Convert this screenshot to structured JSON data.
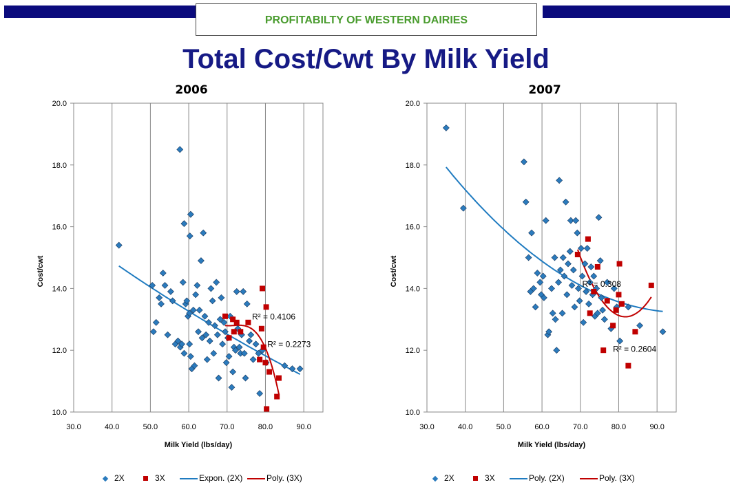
{
  "header": {
    "banner_text": "PROFITABILTY OF WESTERN DAIRIES",
    "title": "Total Cost/Cwt By Milk Yield",
    "banner_color": "#0b0b7d",
    "title_color": "#161a85",
    "banner_text_color": "#4a9c2f"
  },
  "chart_data": [
    {
      "type": "scatter",
      "title": "2006",
      "xlabel": "Milk Yield (lbs/day)",
      "ylabel": "Cost/cwt",
      "xlim": [
        30,
        95
      ],
      "ylim": [
        10,
        20
      ],
      "xticks": [
        "30.0",
        "40.0",
        "50.0",
        "60.0",
        "70.0",
        "80.0",
        "90.0"
      ],
      "yticks": [
        "10.0",
        "12.0",
        "14.0",
        "16.0",
        "18.0",
        "20.0"
      ],
      "grid": "vertical",
      "legend": "bottom",
      "series": [
        {
          "name": "2X",
          "marker": "diamond",
          "color": "#2b7bbd",
          "points": [
            [
              41.8,
              15.4
            ],
            [
              50.5,
              14.1
            ],
            [
              50.8,
              12.6
            ],
            [
              51.5,
              12.9
            ],
            [
              52.3,
              13.7
            ],
            [
              52.8,
              13.5
            ],
            [
              53.3,
              14.5
            ],
            [
              53.8,
              14.1
            ],
            [
              54.5,
              12.5
            ],
            [
              55.3,
              13.9
            ],
            [
              55.8,
              13.6
            ],
            [
              56.5,
              12.2
            ],
            [
              57.2,
              12.3
            ],
            [
              57.7,
              18.5
            ],
            [
              57.8,
              12.1
            ],
            [
              58.2,
              12.2
            ],
            [
              58.5,
              14.2
            ],
            [
              58.8,
              16.1
            ],
            [
              58.8,
              11.9
            ],
            [
              59.2,
              13.5
            ],
            [
              59.5,
              13.6
            ],
            [
              59.8,
              13.1
            ],
            [
              60.2,
              13.2
            ],
            [
              60.2,
              12.2
            ],
            [
              60.3,
              15.7
            ],
            [
              60.5,
              16.4
            ],
            [
              60.5,
              11.8
            ],
            [
              60.8,
              11.4
            ],
            [
              61.2,
              13.3
            ],
            [
              61.5,
              11.5
            ],
            [
              61.8,
              13.8
            ],
            [
              62.2,
              14.1
            ],
            [
              62.5,
              12.6
            ],
            [
              62.8,
              13.3
            ],
            [
              63.2,
              14.9
            ],
            [
              63.5,
              12.4
            ],
            [
              63.8,
              15.8
            ],
            [
              64.2,
              13.1
            ],
            [
              64.5,
              12.5
            ],
            [
              64.8,
              11.7
            ],
            [
              65.2,
              12.9
            ],
            [
              65.5,
              12.3
            ],
            [
              65.8,
              14.0
            ],
            [
              66.2,
              13.6
            ],
            [
              66.5,
              11.9
            ],
            [
              66.8,
              12.8
            ],
            [
              67.2,
              14.2
            ],
            [
              67.5,
              12.5
            ],
            [
              67.8,
              11.1
            ],
            [
              68.2,
              13.0
            ],
            [
              68.5,
              13.7
            ],
            [
              68.8,
              12.2
            ],
            [
              69.2,
              12.9
            ],
            [
              69.5,
              12.6
            ],
            [
              69.8,
              11.6
            ],
            [
              70.2,
              12.4
            ],
            [
              70.5,
              11.8
            ],
            [
              70.8,
              13.1
            ],
            [
              71.2,
              10.8
            ],
            [
              71.5,
              11.3
            ],
            [
              71.8,
              12.1
            ],
            [
              72.2,
              12.0
            ],
            [
              72.5,
              13.9
            ],
            [
              72.8,
              12.7
            ],
            [
              73.2,
              12.1
            ],
            [
              73.5,
              11.9
            ],
            [
              73.8,
              12.5
            ],
            [
              74.2,
              13.9
            ],
            [
              74.5,
              11.9
            ],
            [
              74.8,
              11.1
            ],
            [
              75.2,
              13.5
            ],
            [
              75.8,
              12.3
            ],
            [
              76.2,
              12.5
            ],
            [
              76.8,
              11.7
            ],
            [
              77.5,
              12.2
            ],
            [
              78.2,
              11.9
            ],
            [
              78.5,
              10.6
            ],
            [
              79.2,
              12.0
            ],
            [
              80.2,
              11.6
            ],
            [
              85.0,
              11.5
            ],
            [
              87.0,
              11.4
            ],
            [
              89.0,
              11.4
            ]
          ]
        },
        {
          "name": "3X",
          "marker": "square",
          "color": "#c00000",
          "points": [
            [
              69.5,
              13.1
            ],
            [
              70.5,
              12.4
            ],
            [
              71.5,
              13.0
            ],
            [
              71.8,
              12.6
            ],
            [
              72.5,
              12.9
            ],
            [
              73.5,
              12.6
            ],
            [
              75.5,
              12.9
            ],
            [
              78.5,
              11.7
            ],
            [
              79.0,
              12.7
            ],
            [
              79.2,
              14.0
            ],
            [
              79.5,
              12.1
            ],
            [
              80.0,
              11.6
            ],
            [
              80.2,
              13.4
            ],
            [
              80.3,
              10.1
            ],
            [
              81.0,
              11.3
            ],
            [
              83.0,
              10.5
            ],
            [
              83.5,
              11.1
            ]
          ]
        }
      ],
      "trendlines": [
        {
          "name": "Expon. (2X)",
          "series": "2X",
          "kind": "exponential",
          "color": "#1f7bc0",
          "x": [
            41.8,
            89.0
          ],
          "r2": "R² = 0.2273"
        },
        {
          "name": "Poly. (3X)",
          "series": "3X",
          "kind": "polynomial",
          "color": "#c00000",
          "x": [
            69.5,
            83.5
          ],
          "r2": "R² = 0.4106"
        }
      ]
    },
    {
      "type": "scatter",
      "title": "2007",
      "xlabel": "Milk Yield (lbs/day)",
      "ylabel": "Cost/cwt",
      "xlim": [
        30,
        95
      ],
      "ylim": [
        10,
        20
      ],
      "xticks": [
        "30.0",
        "40.0",
        "50.0",
        "60.0",
        "70.0",
        "80.0",
        "90.0"
      ],
      "yticks": [
        "10.0",
        "12.0",
        "14.0",
        "16.0",
        "18.0",
        "20.0"
      ],
      "grid": "vertical",
      "legend": "bottom",
      "series": [
        {
          "name": "2X",
          "marker": "diamond",
          "color": "#2b7bbd",
          "points": [
            [
              35.0,
              19.2
            ],
            [
              39.5,
              16.6
            ],
            [
              55.3,
              18.1
            ],
            [
              55.8,
              16.8
            ],
            [
              56.5,
              15.0
            ],
            [
              57.0,
              13.9
            ],
            [
              57.3,
              15.8
            ],
            [
              57.8,
              14.0
            ],
            [
              58.3,
              13.4
            ],
            [
              58.8,
              14.5
            ],
            [
              59.5,
              14.2
            ],
            [
              59.8,
              13.8
            ],
            [
              60.3,
              14.4
            ],
            [
              60.5,
              13.7
            ],
            [
              61.0,
              16.2
            ],
            [
              61.5,
              12.5
            ],
            [
              61.8,
              12.6
            ],
            [
              62.5,
              14.0
            ],
            [
              62.8,
              13.2
            ],
            [
              63.3,
              15.0
            ],
            [
              63.5,
              13.0
            ],
            [
              63.8,
              12.0
            ],
            [
              64.3,
              14.2
            ],
            [
              64.5,
              17.5
            ],
            [
              64.8,
              14.6
            ],
            [
              65.3,
              13.2
            ],
            [
              65.5,
              15.0
            ],
            [
              65.8,
              14.4
            ],
            [
              66.2,
              16.8
            ],
            [
              66.5,
              13.8
            ],
            [
              66.8,
              14.8
            ],
            [
              67.3,
              15.2
            ],
            [
              67.5,
              16.2
            ],
            [
              67.8,
              14.1
            ],
            [
              68.2,
              14.6
            ],
            [
              68.5,
              13.4
            ],
            [
              68.8,
              16.2
            ],
            [
              69.2,
              15.8
            ],
            [
              69.5,
              14.0
            ],
            [
              69.8,
              13.6
            ],
            [
              70.2,
              15.3
            ],
            [
              70.5,
              14.4
            ],
            [
              70.8,
              12.9
            ],
            [
              71.2,
              14.8
            ],
            [
              71.5,
              13.9
            ],
            [
              71.8,
              15.3
            ],
            [
              72.2,
              13.5
            ],
            [
              72.5,
              14.2
            ],
            [
              72.8,
              14.7
            ],
            [
              73.2,
              13.8
            ],
            [
              73.5,
              14.4
            ],
            [
              73.8,
              13.1
            ],
            [
              74.2,
              14.0
            ],
            [
              74.5,
              13.2
            ],
            [
              74.8,
              16.3
            ],
            [
              75.2,
              14.9
            ],
            [
              75.5,
              13.7
            ],
            [
              75.8,
              13.3
            ],
            [
              76.3,
              13.0
            ],
            [
              77.0,
              14.2
            ],
            [
              78.0,
              12.7
            ],
            [
              78.8,
              14.0
            ],
            [
              79.5,
              13.4
            ],
            [
              80.3,
              12.3
            ],
            [
              82.5,
              13.4
            ],
            [
              85.5,
              12.8
            ],
            [
              91.5,
              12.6
            ]
          ]
        },
        {
          "name": "3X",
          "marker": "square",
          "color": "#c00000",
          "points": [
            [
              69.3,
              15.1
            ],
            [
              72.0,
              15.6
            ],
            [
              72.5,
              13.2
            ],
            [
              73.5,
              13.9
            ],
            [
              74.5,
              14.7
            ],
            [
              76.0,
              12.0
            ],
            [
              77.0,
              13.6
            ],
            [
              78.5,
              12.8
            ],
            [
              79.3,
              13.3
            ],
            [
              80.0,
              13.8
            ],
            [
              80.2,
              14.8
            ],
            [
              80.8,
              13.5
            ],
            [
              82.5,
              11.5
            ],
            [
              84.3,
              12.6
            ],
            [
              88.5,
              14.1
            ]
          ]
        }
      ],
      "trendlines": [
        {
          "name": "Poly. (2X)",
          "series": "2X",
          "kind": "polynomial",
          "color": "#1f7bc0",
          "x": [
            35.0,
            91.5
          ],
          "r2": "R² = 0.2604"
        },
        {
          "name": "Poly. (3X)",
          "series": "3X",
          "kind": "polynomial",
          "color": "#c00000",
          "x": [
            69.3,
            88.5
          ],
          "r2": "R² = 0.308"
        }
      ]
    }
  ]
}
